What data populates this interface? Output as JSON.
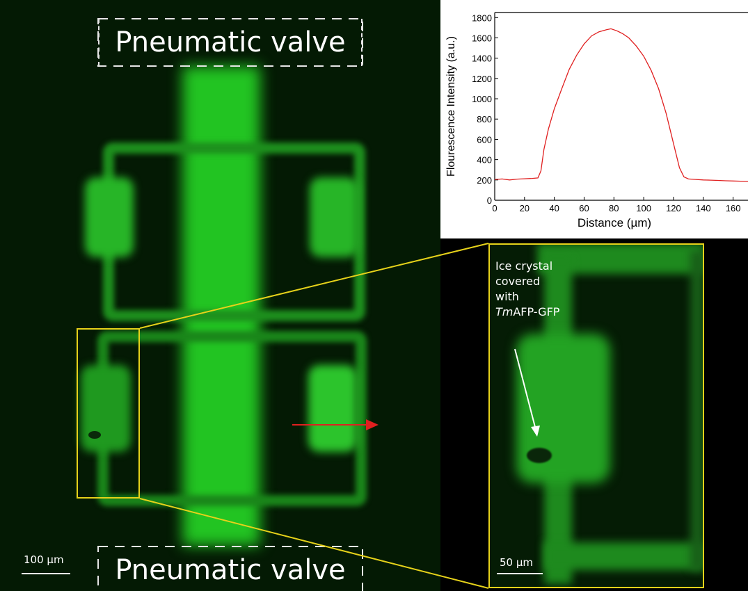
{
  "valves": {
    "top_label": "Pneumatic valve",
    "bottom_label": "Pneumatic valve"
  },
  "main_scale_bar": "100 µm",
  "zoom_scale_bar": "50 µm",
  "annotation": {
    "line1": "Ice crystal",
    "line2": "covered",
    "line3": "with",
    "italic": "Tm",
    "rest": "AFP-GFP"
  },
  "colors": {
    "fluorescence": "#2ec52e",
    "highlight_box": "#e6d21a",
    "profile_arrow": "#e02020",
    "profile_line": "#e02020"
  },
  "chart_data": {
    "type": "line",
    "title": "",
    "xlabel": "Distance (µm)",
    "ylabel": "Flourescence Intensity (a.u.)",
    "xlim": [
      0,
      170
    ],
    "ylim": [
      0,
      1850
    ],
    "x_ticks": [
      "0",
      "20",
      "40",
      "60",
      "80",
      "100",
      "120",
      "140",
      "160"
    ],
    "y_ticks": [
      "0",
      "200",
      "400",
      "600",
      "800",
      "1000",
      "1200",
      "1400",
      "1600",
      "1800"
    ],
    "series": [
      {
        "x": [
          0,
          5,
          10,
          15,
          20,
          25,
          29,
          31,
          33,
          36,
          40,
          45,
          50,
          55,
          60,
          65,
          70,
          75,
          78,
          82,
          86,
          90,
          95,
          100,
          105,
          110,
          115,
          120,
          124,
          127,
          130,
          135,
          140,
          145,
          150,
          155,
          160,
          165,
          170
        ],
        "values": [
          205,
          210,
          200,
          208,
          212,
          215,
          220,
          290,
          500,
          700,
          900,
          1100,
          1290,
          1430,
          1540,
          1620,
          1660,
          1680,
          1690,
          1670,
          1640,
          1600,
          1520,
          1420,
          1280,
          1100,
          860,
          560,
          320,
          230,
          210,
          205,
          200,
          198,
          195,
          192,
          190,
          188,
          185
        ]
      }
    ]
  }
}
